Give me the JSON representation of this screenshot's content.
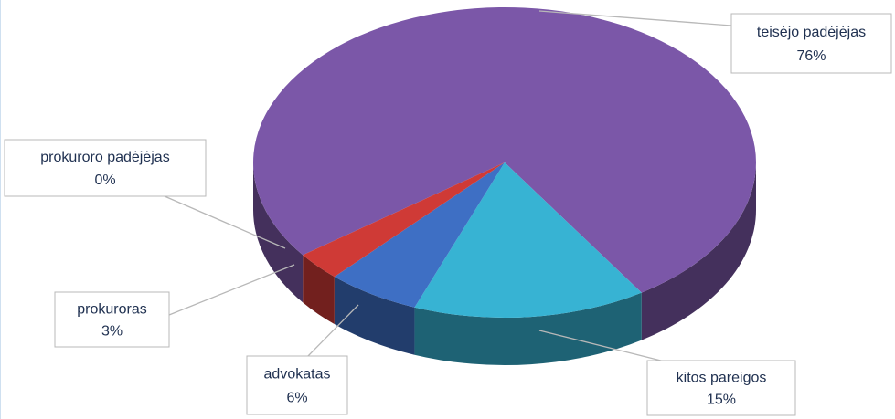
{
  "chart_data": {
    "type": "pie",
    "categories": [
      "teisėjo padėjėjas",
      "kitos pareigos",
      "advokatas",
      "prokuroras",
      "prokuroro padėjėjas"
    ],
    "values": [
      76,
      15,
      6,
      3,
      0
    ],
    "value_labels": [
      "76%",
      "15%",
      "6%",
      "3%",
      "0%"
    ],
    "colors": [
      "#7b57a8",
      "#37b3d3",
      "#3e6fc4",
      "#cf3a36",
      "#8cb040"
    ]
  }
}
